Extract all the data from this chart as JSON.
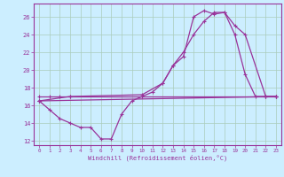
{
  "xlabel": "Windchill (Refroidissement éolien,°C)",
  "background_color": "#cceeff",
  "grid_color": "#aaccbb",
  "line_color": "#993399",
  "xlim": [
    -0.5,
    23.5
  ],
  "ylim": [
    11.5,
    27.5
  ],
  "yticks": [
    12,
    14,
    16,
    18,
    20,
    22,
    24,
    26
  ],
  "xticks": [
    0,
    1,
    2,
    3,
    4,
    5,
    6,
    7,
    8,
    9,
    10,
    11,
    12,
    13,
    14,
    15,
    16,
    17,
    18,
    19,
    20,
    21,
    22,
    23
  ],
  "series1_x": [
    0,
    1,
    2,
    3,
    22,
    23
  ],
  "series1_y": [
    17.0,
    17.0,
    17.0,
    17.0,
    17.0,
    17.0
  ],
  "series2_x": [
    0,
    1,
    2,
    3,
    4,
    5,
    6,
    7,
    8,
    9,
    10,
    11,
    12,
    13,
    14,
    15,
    16,
    17,
    18,
    19,
    20,
    21,
    22,
    23
  ],
  "series2_y": [
    16.5,
    15.5,
    14.5,
    14.0,
    13.5,
    13.5,
    12.2,
    12.2,
    15.0,
    16.5,
    17.0,
    17.5,
    18.5,
    20.5,
    21.5,
    26.0,
    26.7,
    26.3,
    26.5,
    24.0,
    19.5,
    17.0,
    17.0,
    17.0
  ],
  "series3_x": [
    0,
    3,
    10,
    12,
    13,
    14,
    15,
    16,
    17,
    18,
    19,
    20,
    22,
    23
  ],
  "series3_y": [
    16.5,
    17.0,
    17.2,
    18.5,
    20.5,
    22.0,
    24.0,
    25.5,
    26.5,
    26.5,
    25.0,
    24.0,
    17.0,
    17.0
  ],
  "series4_x": [
    0,
    23
  ],
  "series4_y": [
    16.5,
    17.0
  ]
}
